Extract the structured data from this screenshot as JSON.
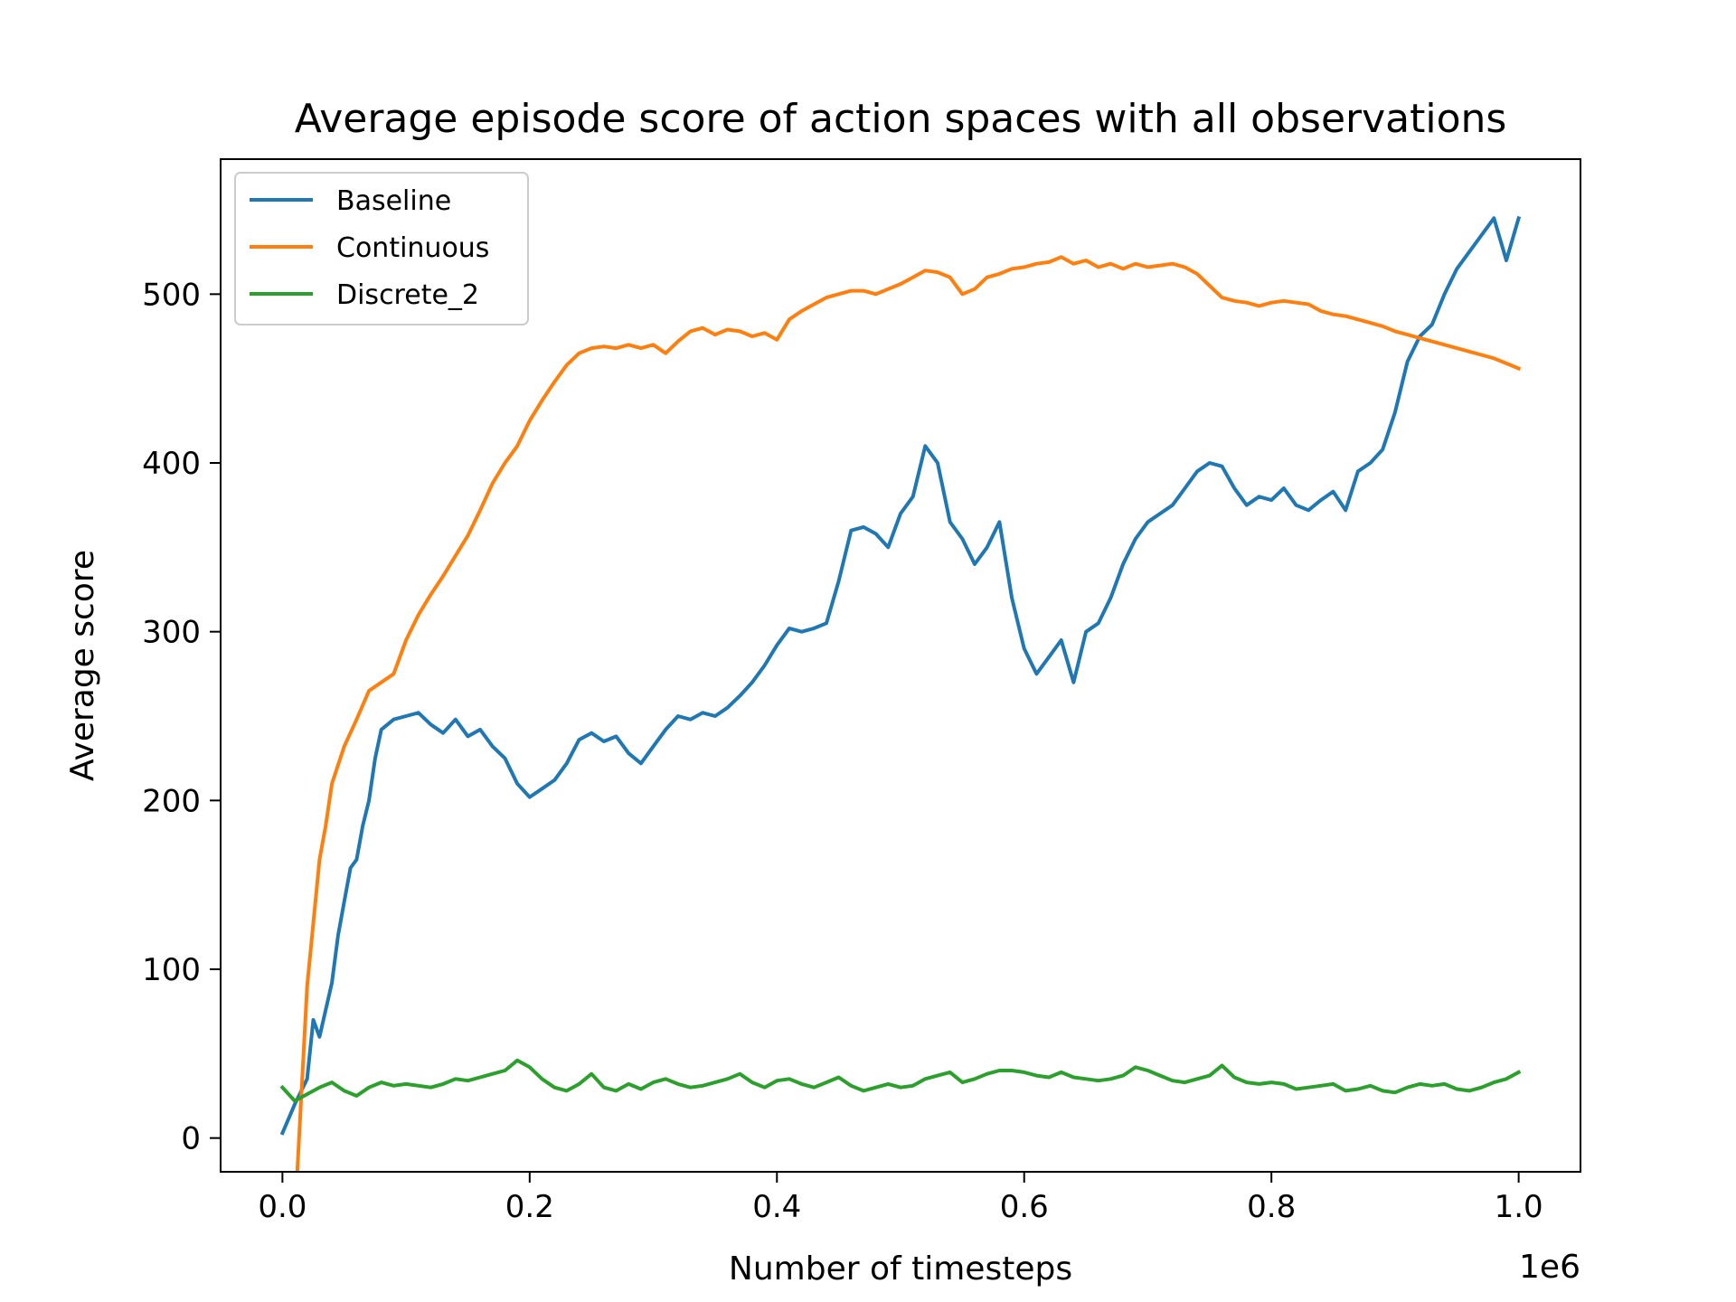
{
  "chart_data": {
    "type": "line",
    "title": "Average episode score of action spaces with all observations",
    "xlabel": "Number of timesteps",
    "ylabel": "Average score",
    "x_offset_label": "1e6",
    "xlim": [
      -0.05,
      1.05
    ],
    "ylim": [
      -20,
      580
    ],
    "xticks": [
      0.0,
      0.2,
      0.4,
      0.6,
      0.8,
      1.0
    ],
    "xtick_labels": [
      "0.0",
      "0.2",
      "0.4",
      "0.6",
      "0.8",
      "1.0"
    ],
    "yticks": [
      0,
      100,
      200,
      300,
      400,
      500
    ],
    "ytick_labels": [
      "0",
      "100",
      "200",
      "300",
      "400",
      "500"
    ],
    "grid": false,
    "legend_position": "top-left",
    "series": [
      {
        "name": "Baseline",
        "color": "#1f77b4",
        "x": [
          0.0,
          0.01,
          0.02,
          0.025,
          0.03,
          0.04,
          0.045,
          0.05,
          0.055,
          0.06,
          0.065,
          0.07,
          0.075,
          0.08,
          0.085,
          0.09,
          0.1,
          0.11,
          0.12,
          0.13,
          0.14,
          0.15,
          0.16,
          0.17,
          0.18,
          0.19,
          0.2,
          0.21,
          0.22,
          0.23,
          0.24,
          0.25,
          0.26,
          0.27,
          0.28,
          0.29,
          0.3,
          0.31,
          0.32,
          0.33,
          0.34,
          0.35,
          0.36,
          0.37,
          0.38,
          0.39,
          0.4,
          0.41,
          0.42,
          0.43,
          0.44,
          0.45,
          0.46,
          0.47,
          0.48,
          0.49,
          0.5,
          0.51,
          0.52,
          0.53,
          0.54,
          0.55,
          0.56,
          0.57,
          0.58,
          0.59,
          0.6,
          0.61,
          0.62,
          0.63,
          0.64,
          0.65,
          0.66,
          0.67,
          0.68,
          0.69,
          0.7,
          0.71,
          0.72,
          0.73,
          0.74,
          0.75,
          0.76,
          0.77,
          0.78,
          0.79,
          0.8,
          0.81,
          0.82,
          0.83,
          0.84,
          0.85,
          0.86,
          0.87,
          0.88,
          0.89,
          0.9,
          0.91,
          0.92,
          0.93,
          0.94,
          0.95,
          0.96,
          0.97,
          0.98,
          0.99,
          1.0
        ],
        "y": [
          3,
          20,
          35,
          70,
          60,
          92,
          120,
          140,
          160,
          165,
          185,
          200,
          225,
          242,
          245,
          248,
          250,
          252,
          245,
          240,
          248,
          238,
          242,
          232,
          225,
          210,
          202,
          207,
          212,
          222,
          236,
          240,
          235,
          238,
          228,
          222,
          232,
          242,
          250,
          248,
          252,
          250,
          255,
          262,
          270,
          280,
          292,
          302,
          300,
          302,
          305,
          330,
          360,
          362,
          358,
          350,
          370,
          380,
          410,
          400,
          365,
          355,
          340,
          350,
          365,
          320,
          290,
          275,
          285,
          295,
          270,
          300,
          305,
          320,
          340,
          355,
          365,
          370,
          375,
          385,
          395,
          400,
          398,
          385,
          375,
          380,
          378,
          385,
          375,
          372,
          378,
          383,
          372,
          395,
          400,
          408,
          430,
          460,
          475,
          482,
          500,
          515,
          525,
          535,
          545,
          520,
          545
        ],
        "note_first_last": null
      },
      {
        "name": "Continuous",
        "color": "#ff7f0e",
        "x": [
          0.012,
          0.02,
          0.03,
          0.035,
          0.04,
          0.05,
          0.06,
          0.07,
          0.08,
          0.09,
          0.1,
          0.11,
          0.12,
          0.13,
          0.14,
          0.15,
          0.16,
          0.17,
          0.18,
          0.19,
          0.2,
          0.21,
          0.22,
          0.23,
          0.24,
          0.25,
          0.26,
          0.27,
          0.28,
          0.29,
          0.3,
          0.31,
          0.32,
          0.33,
          0.34,
          0.35,
          0.36,
          0.37,
          0.38,
          0.39,
          0.4,
          0.41,
          0.42,
          0.43,
          0.44,
          0.45,
          0.46,
          0.47,
          0.48,
          0.49,
          0.5,
          0.51,
          0.52,
          0.53,
          0.54,
          0.55,
          0.56,
          0.57,
          0.58,
          0.59,
          0.6,
          0.61,
          0.62,
          0.63,
          0.64,
          0.65,
          0.66,
          0.67,
          0.68,
          0.69,
          0.7,
          0.71,
          0.72,
          0.73,
          0.74,
          0.75,
          0.76,
          0.77,
          0.78,
          0.79,
          0.8,
          0.81,
          0.82,
          0.83,
          0.84,
          0.85,
          0.86,
          0.87,
          0.88,
          0.89,
          0.9,
          0.91,
          0.92,
          0.93,
          0.94,
          0.95,
          0.96,
          0.97,
          0.98,
          0.99,
          1.0
        ],
        "y": [
          -20,
          90,
          165,
          185,
          210,
          232,
          248,
          265,
          270,
          275,
          295,
          310,
          322,
          333,
          345,
          357,
          372,
          388,
          400,
          410,
          425,
          437,
          448,
          458,
          465,
          468,
          469,
          468,
          470,
          468,
          470,
          465,
          472,
          478,
          480,
          476,
          479,
          478,
          475,
          477,
          473,
          485,
          490,
          494,
          498,
          500,
          502,
          502,
          500,
          503,
          506,
          510,
          514,
          513,
          510,
          500,
          503,
          510,
          512,
          515,
          516,
          518,
          519,
          522,
          518,
          520,
          516,
          518,
          515,
          518,
          516,
          517,
          518,
          516,
          512,
          505,
          498,
          496,
          495,
          493,
          495,
          496,
          495,
          494,
          490,
          488,
          487,
          485,
          483,
          481,
          478,
          476,
          474,
          472,
          470,
          468,
          466,
          464,
          462,
          459,
          456
        ]
      },
      {
        "name": "Discrete_2",
        "color": "#2ca02c",
        "x": [
          0.0,
          0.01,
          0.02,
          0.03,
          0.04,
          0.05,
          0.06,
          0.07,
          0.08,
          0.09,
          0.1,
          0.11,
          0.12,
          0.13,
          0.14,
          0.15,
          0.16,
          0.17,
          0.18,
          0.19,
          0.2,
          0.21,
          0.22,
          0.23,
          0.24,
          0.25,
          0.26,
          0.27,
          0.28,
          0.29,
          0.3,
          0.31,
          0.32,
          0.33,
          0.34,
          0.35,
          0.36,
          0.37,
          0.38,
          0.39,
          0.4,
          0.41,
          0.42,
          0.43,
          0.44,
          0.45,
          0.46,
          0.47,
          0.48,
          0.49,
          0.5,
          0.51,
          0.52,
          0.53,
          0.54,
          0.55,
          0.56,
          0.57,
          0.58,
          0.59,
          0.6,
          0.61,
          0.62,
          0.63,
          0.64,
          0.65,
          0.66,
          0.67,
          0.68,
          0.69,
          0.7,
          0.71,
          0.72,
          0.73,
          0.74,
          0.75,
          0.76,
          0.77,
          0.78,
          0.79,
          0.8,
          0.81,
          0.82,
          0.83,
          0.84,
          0.85,
          0.86,
          0.87,
          0.88,
          0.89,
          0.9,
          0.91,
          0.92,
          0.93,
          0.94,
          0.95,
          0.96,
          0.97,
          0.98,
          0.99,
          1.0
        ],
        "y": [
          30,
          22,
          26,
          30,
          33,
          28,
          25,
          30,
          33,
          31,
          32,
          31,
          30,
          32,
          35,
          34,
          36,
          38,
          40,
          46,
          42,
          35,
          30,
          28,
          32,
          38,
          30,
          28,
          32,
          29,
          33,
          35,
          32,
          30,
          31,
          33,
          35,
          38,
          33,
          30,
          34,
          35,
          32,
          30,
          33,
          36,
          31,
          28,
          30,
          32,
          30,
          31,
          35,
          37,
          39,
          33,
          35,
          38,
          40,
          40,
          39,
          37,
          36,
          39,
          36,
          35,
          34,
          35,
          37,
          42,
          40,
          37,
          34,
          33,
          35,
          37,
          43,
          36,
          33,
          32,
          33,
          32,
          29,
          30,
          31,
          32,
          28,
          29,
          31,
          28,
          27,
          30,
          32,
          31,
          32,
          29,
          28,
          30,
          33,
          35,
          39
        ]
      }
    ]
  }
}
